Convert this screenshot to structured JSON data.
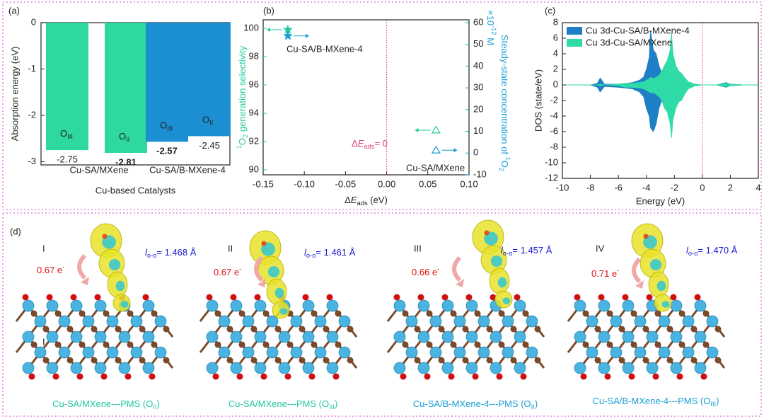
{
  "panel_labels": [
    "(a)",
    "(b)",
    "(c)"
  ],
  "chart_data": [
    {
      "type": "bar",
      "ylabel": "Absorption energy (eV)",
      "xlabel": "Cu-based Catalysts",
      "categories": [
        [
          {
            "t": "O"
          },
          {
            "t": "III",
            "s": "sub"
          }
        ],
        [
          {
            "t": "O"
          },
          {
            "t": "II",
            "s": "sub"
          }
        ],
        [
          {
            "t": "O"
          },
          {
            "t": "III",
            "s": "sub"
          }
        ],
        [
          {
            "t": "O"
          },
          {
            "t": "II",
            "s": "sub"
          }
        ]
      ],
      "values": [
        -2.75,
        -2.81,
        -2.57,
        -2.45
      ],
      "colors": [
        "#2ed9a0",
        "#2ed9a0",
        "#1b8fd2",
        "#1b8fd2"
      ],
      "bold": [
        false,
        true,
        true,
        false
      ],
      "groups": [
        {
          "name": "Cu-SA/MXene",
          "color": "#1fc196"
        },
        {
          "name": "Cu-SA/B-MXene-4",
          "color": "#1b8fd2"
        }
      ],
      "ylim": [
        -3.07,
        0
      ],
      "yticks": [
        0,
        -1,
        -2,
        -3
      ]
    },
    {
      "type": "scatter",
      "xlabel": [
        {
          "t": "Δ"
        },
        {
          "t": "E",
          "s": "it"
        },
        {
          "t": "ads",
          "s": "sub"
        },
        {
          "t": " (eV)"
        }
      ],
      "ylabel": [
        {
          "t": "1",
          "s": "sup"
        },
        {
          "t": "O"
        },
        {
          "t": "2",
          "s": "sub"
        },
        {
          "t": " generation selectivity"
        }
      ],
      "y2label": [
        {
          "t": "Steady-state concentration of "
        },
        {
          "t": "1",
          "s": "sup"
        },
        {
          "t": "O"
        },
        {
          "t": "2",
          "s": "sub"
        }
      ],
      "y2multiplier": [
        {
          "t": "×10"
        },
        {
          "t": "-12",
          "s": "sup"
        },
        {
          "t": " M"
        }
      ],
      "annotation": [
        {
          "t": "Δ"
        },
        {
          "t": "E",
          "s": "it"
        },
        {
          "t": "ads",
          "s": "sub"
        },
        {
          "t": "= 0"
        }
      ],
      "point_labels": [
        "Cu-SA/B-MXene-4",
        "Cu-SA/MXene"
      ],
      "markers": [
        "star",
        "triangle"
      ],
      "series": [
        {
          "color": "#22c9a0",
          "x": [
            -0.12,
            0.06
          ],
          "values": [
            99.9,
            92.8
          ]
        },
        {
          "color": "#1a9fd6",
          "axis": "y2",
          "x": [
            -0.12,
            0.06
          ],
          "values": [
            53.9,
            1.3
          ]
        }
      ],
      "xlim": [
        -0.15,
        0.1
      ],
      "xticks": [
        -0.15,
        {
          "value": -0.1,
          "label": "-0.10"
        },
        -0.05,
        {
          "value": 0,
          "label": "0.00"
        },
        0.05,
        {
          "value": 0.1,
          "label": "0.10"
        }
      ],
      "ylim": [
        89.65,
        100.6
      ],
      "yticks": [
        90,
        92,
        94,
        96,
        98,
        100
      ],
      "y2lim": [
        -10,
        61.3
      ],
      "y2ticks": [
        -10,
        0,
        10,
        20,
        30,
        40,
        50,
        60
      ]
    },
    {
      "type": "area",
      "xlabel": "Energy (eV)",
      "ylabel": "DOS (state/eV)",
      "legend": "upper left",
      "x": [
        -10,
        -8,
        -7.5,
        -7.3,
        -7,
        -6,
        -5.5,
        -5,
        -4.5,
        -4.2,
        -4,
        -3.8,
        -3.7,
        -3.5,
        -3.3,
        -3.1,
        -2.9,
        -2.7,
        -2.5,
        -2.3,
        -2.2,
        -2.1,
        -1.9,
        -1.7,
        -1.5,
        -1.2,
        -1,
        -0.5,
        0,
        1,
        1.7,
        2,
        3,
        4
      ],
      "series": [
        {
          "name": "Cu 3d-Cu-SA/B-MXene-4",
          "color": "#1e7fc6",
          "values": [
            0,
            0,
            0.2,
            0.9,
            0.1,
            0.1,
            0.2,
            0.3,
            0.6,
            1.0,
            2.0,
            3.5,
            7.0,
            4.5,
            4.0,
            2.5,
            1.5,
            1.2,
            1.8,
            2.0,
            1.5,
            1.0,
            0.6,
            0.4,
            0.3,
            0.2,
            0.1,
            0.05,
            0,
            0,
            0.3,
            0.1,
            0,
            0
          ],
          "values_down": [
            0,
            0,
            -0.3,
            -0.9,
            -0.2,
            -0.3,
            -0.4,
            -0.5,
            -0.9,
            -1.5,
            -3,
            -4,
            -5.5,
            -6,
            -5,
            -3,
            -2,
            -1.5,
            -2,
            -1.8,
            -1.2,
            -0.8,
            -0.5,
            -0.4,
            -0.3,
            -0.2,
            -0.1,
            -0.05,
            0,
            0,
            -0.3,
            -0.1,
            0,
            0
          ]
        },
        {
          "name": "Cu 3d-Cu-SA/MXene",
          "color": "#2fdba6",
          "values": [
            0,
            0,
            0,
            0.1,
            0,
            0.1,
            0.2,
            0.2,
            0.3,
            0.4,
            0.6,
            0.8,
            1,
            0.8,
            1,
            1.2,
            1.8,
            2.5,
            3.2,
            4.5,
            6.7,
            4.0,
            2.5,
            1.8,
            1.5,
            0.8,
            0.4,
            0.1,
            0,
            0,
            0.2,
            0.1,
            0,
            0
          ],
          "values_down": [
            0,
            0,
            0,
            -0.1,
            0,
            -0.1,
            -0.3,
            -0.3,
            -0.4,
            -0.5,
            -0.7,
            -0.9,
            -1,
            -1,
            -1.2,
            -1.5,
            -2,
            -3,
            -3.5,
            -5,
            -6.8,
            -4.5,
            -3,
            -2.2,
            -2,
            -1,
            -0.5,
            -0.1,
            0,
            0,
            -0.2,
            -0.1,
            0,
            0
          ]
        }
      ],
      "xlim": [
        -10,
        4
      ],
      "xticks": [
        -10,
        -8,
        -6,
        -4,
        -2,
        0,
        2,
        4
      ],
      "ylim": [
        -12,
        8
      ],
      "yticks": [
        -12,
        -10,
        -8,
        -6,
        -4,
        -2,
        0,
        2,
        4,
        6,
        8
      ]
    }
  ],
  "panel_d": {
    "label": "(d)",
    "extra_label": "I",
    "structures": [
      {
        "numeral": "I",
        "charge": [
          {
            "t": "0.67 e"
          },
          {
            "t": "-",
            "s": "sup"
          }
        ],
        "bond": [
          {
            "t": "l",
            "s": "it"
          },
          {
            "t": "o-o",
            "s": "sub"
          },
          {
            "t": "= 1.468 Å"
          }
        ],
        "caption": [
          {
            "t": "Cu-SA/MXene---PMS (O"
          },
          {
            "t": "II",
            "s": "sub"
          },
          {
            "t": ")"
          }
        ],
        "color": "#22c9a0"
      },
      {
        "numeral": "II",
        "charge": [
          {
            "t": "0.67 e"
          },
          {
            "t": "-",
            "s": "sup"
          }
        ],
        "bond": [
          {
            "t": "l",
            "s": "it"
          },
          {
            "t": "o-o",
            "s": "sub"
          },
          {
            "t": "= 1.461 Å"
          }
        ],
        "caption": [
          {
            "t": "Cu-SA/MXene---PMS (O"
          },
          {
            "t": "III",
            "s": "sub"
          },
          {
            "t": ")"
          }
        ],
        "color": "#22c9a0"
      },
      {
        "numeral": "III",
        "charge": [
          {
            "t": "0.66 e"
          },
          {
            "t": "-",
            "s": "sup"
          }
        ],
        "bond": [
          {
            "t": "l",
            "s": "it"
          },
          {
            "t": "o-o",
            "s": "sub"
          },
          {
            "t": "= 1.457 Å"
          }
        ],
        "caption": [
          {
            "t": "Cu-SA/B-MXene-4---PMS (O"
          },
          {
            "t": "II",
            "s": "sub"
          },
          {
            "t": ")"
          }
        ],
        "color": "#1a9fd6"
      },
      {
        "numeral": "IV",
        "charge": [
          {
            "t": "0.71 e"
          },
          {
            "t": "-",
            "s": "sup"
          }
        ],
        "bond": [
          {
            "t": "l",
            "s": "it"
          },
          {
            "t": "o-o",
            "s": "sub"
          },
          {
            "t": "= 1.470 Å"
          }
        ],
        "caption": [
          {
            "t": "Cu-SA/B-MXene-4---PMS (O"
          },
          {
            "t": "III",
            "s": "sub"
          },
          {
            "t": ")"
          }
        ],
        "color": "#1a9fd6"
      }
    ]
  }
}
